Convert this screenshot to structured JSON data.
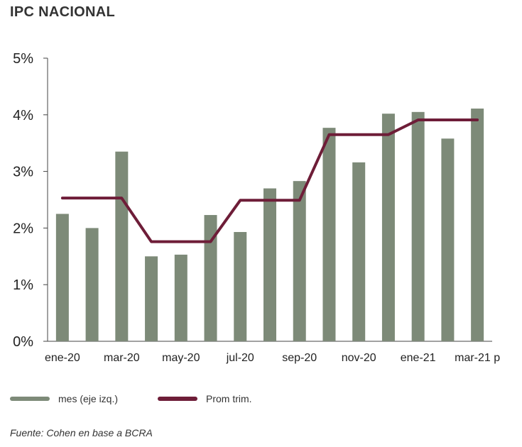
{
  "chart_data": {
    "type": "bar",
    "title": "IPC NACIONAL",
    "xlabel": "",
    "ylabel": "",
    "ylim": [
      0,
      5
    ],
    "yticks": [
      "0%",
      "1%",
      "2%",
      "3%",
      "4%",
      "5%"
    ],
    "categories": [
      "ene-20",
      "feb-20",
      "mar-20",
      "abr-20",
      "may-20",
      "jun-20",
      "jul-20",
      "ago-20",
      "sep-20",
      "oct-20",
      "nov-20",
      "dic-20",
      "ene-21",
      "feb-21",
      "mar-21 p"
    ],
    "xtick_labels": [
      "ene-20",
      "",
      "mar-20",
      "",
      "may-20",
      "",
      "jul-20",
      "",
      "sep-20",
      "",
      "nov-20",
      "",
      "ene-21",
      "",
      "mar-21 p"
    ],
    "series": [
      {
        "name": "mes (eje izq.)",
        "kind": "bar",
        "color": "#7d8a78",
        "values": [
          2.25,
          2.0,
          3.35,
          1.5,
          1.53,
          2.23,
          1.93,
          2.7,
          2.83,
          3.77,
          3.16,
          4.02,
          4.05,
          3.58,
          4.11
        ]
      },
      {
        "name": "Prom trim.",
        "kind": "line",
        "color": "#6e1d38",
        "values": [
          2.53,
          2.53,
          2.53,
          1.76,
          1.76,
          1.76,
          2.49,
          2.49,
          2.49,
          3.65,
          3.65,
          3.65,
          3.91,
          3.91,
          3.91
        ]
      }
    ],
    "legend_position": "bottom-left",
    "grid": false
  },
  "source": "Fuente: Cohen en base a BCRA"
}
